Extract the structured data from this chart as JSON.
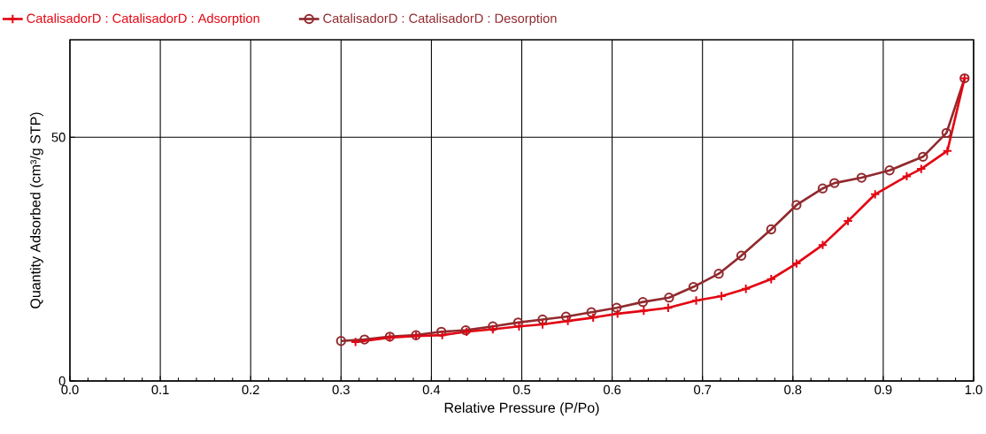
{
  "chart_data": {
    "type": "line",
    "xlabel": "Relative Pressure (P/Po)",
    "ylabel": "Quantity Adsorbed (cm³/g STP)",
    "xlim": [
      0,
      1.0
    ],
    "ylim": [
      0,
      70
    ],
    "xticks": [
      {
        "value": 0,
        "label": "0.0"
      },
      0.1,
      0.2,
      0.3,
      0.4,
      0.5,
      0.6,
      0.7,
      0.8,
      0.9,
      {
        "value": 1.0,
        "label": "1.0"
      }
    ],
    "yticks": [
      0,
      50
    ],
    "grid": true,
    "legend": "top",
    "line_style": "solid",
    "series": [
      {
        "name": "CatalisadorD : CatalisadorD : Adsorption",
        "color": "#e30613",
        "marker": "cross",
        "x": [
          0.316,
          0.354,
          0.383,
          0.412,
          0.439,
          0.468,
          0.497,
          0.523,
          0.551,
          0.579,
          0.606,
          0.635,
          0.662,
          0.693,
          0.721,
          0.748,
          0.776,
          0.804,
          0.833,
          0.861,
          0.891,
          0.926,
          0.942,
          0.971,
          0.99
        ],
        "values": [
          8.0,
          8.9,
          9.2,
          9.4,
          10.1,
          10.6,
          11.2,
          11.6,
          12.3,
          13.0,
          13.8,
          14.4,
          15.0,
          16.5,
          17.4,
          18.9,
          20.9,
          24.1,
          27.9,
          32.8,
          38.3,
          42.0,
          43.5,
          47.2,
          62.1
        ]
      },
      {
        "name": "CatalisadorD : CatalisadorD : Desorption",
        "color": "#912a2e",
        "marker": "circle",
        "x": [
          0.99,
          0.97,
          0.944,
          0.907,
          0.876,
          0.846,
          0.833,
          0.804,
          0.776,
          0.743,
          0.718,
          0.69,
          0.663,
          0.634,
          0.605,
          0.577,
          0.549,
          0.523,
          0.496,
          0.468,
          0.438,
          0.411,
          0.383,
          0.354,
          0.326,
          0.3
        ],
        "values": [
          62.1,
          50.9,
          46.0,
          43.2,
          41.7,
          40.6,
          39.5,
          36.1,
          31.1,
          25.7,
          22.0,
          19.3,
          17.1,
          16.2,
          15.0,
          14.1,
          13.2,
          12.6,
          12.0,
          11.2,
          10.4,
          10.1,
          9.4,
          9.1,
          8.5,
          8.2
        ]
      }
    ]
  }
}
